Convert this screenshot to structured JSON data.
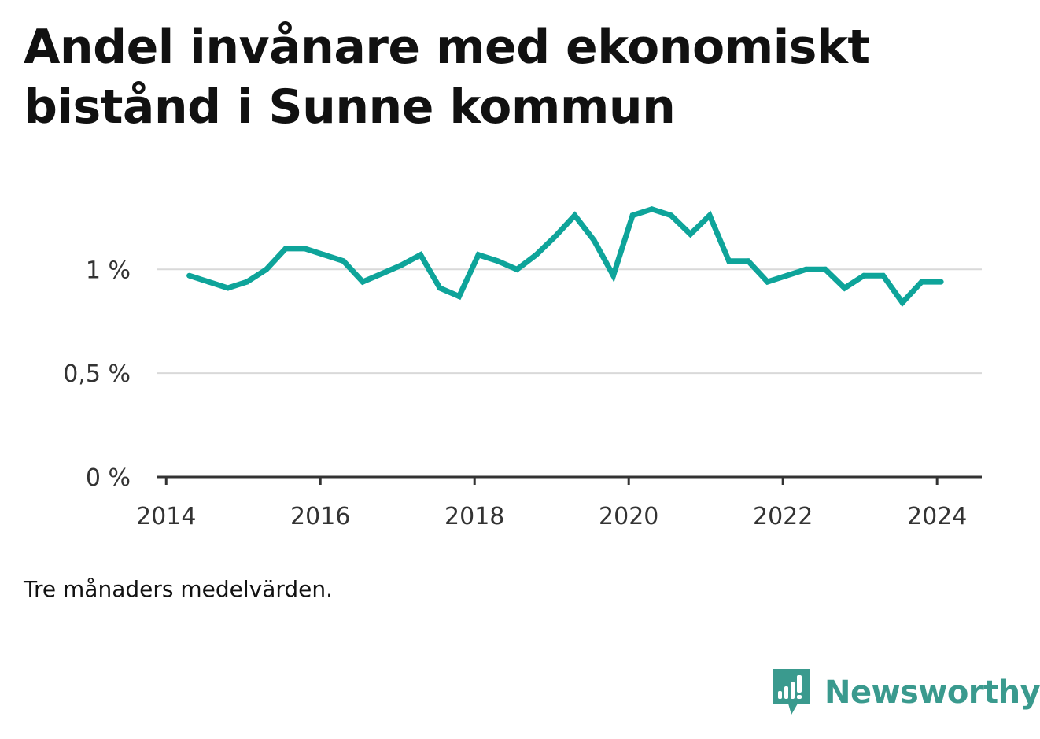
{
  "title": "Andel invånare med ekonomiskt bistånd i Sunne kommun",
  "note": "Tre månaders medelvärden.",
  "brand": {
    "name": "Newsworthy",
    "icon": "newsworthy-logo-icon",
    "color": "#3a9a8e"
  },
  "chart_data": {
    "type": "line",
    "line_color": "#0ea49a",
    "grid": true,
    "x_ticks": [
      {
        "value": 2014,
        "label": "2014"
      },
      {
        "value": 2016,
        "label": "2016"
      },
      {
        "value": 2018,
        "label": "2018"
      },
      {
        "value": 2020,
        "label": "2020"
      },
      {
        "value": 2022,
        "label": "2022"
      },
      {
        "value": 2024,
        "label": "2024"
      }
    ],
    "y_ticks": [
      {
        "value": 0,
        "label": "0 %"
      },
      {
        "value": 0.5,
        "label": "0,5 %"
      },
      {
        "value": 1,
        "label": "1 %"
      }
    ],
    "xlim": [
      2013.875,
      2024.58
    ],
    "ylim": [
      0,
      1.35
    ],
    "series": [
      {
        "x": [
          2014.3,
          2014.55,
          2014.8,
          2015.05,
          2015.3,
          2015.55,
          2015.8,
          2016.05,
          2016.3,
          2016.55,
          2016.8,
          2017.05,
          2017.3,
          2017.55,
          2017.8,
          2018.05,
          2018.3,
          2018.55,
          2018.8,
          2019.05,
          2019.3,
          2019.55,
          2019.8,
          2020.05,
          2020.3,
          2020.55,
          2020.8,
          2021.05,
          2021.3,
          2021.55,
          2021.8,
          2022.05,
          2022.3,
          2022.55,
          2022.8,
          2023.05,
          2023.3,
          2023.55,
          2023.8,
          2024.05
        ],
        "y": [
          0.97,
          0.94,
          0.91,
          0.94,
          1.0,
          1.1,
          1.1,
          1.07,
          1.04,
          0.94,
          0.98,
          1.02,
          1.07,
          0.91,
          0.87,
          1.07,
          1.04,
          1.0,
          1.07,
          1.16,
          1.26,
          1.14,
          0.97,
          1.26,
          1.29,
          1.26,
          1.17,
          1.26,
          1.04,
          1.04,
          0.94,
          0.97,
          1.0,
          1.0,
          0.91,
          0.97,
          0.97,
          0.84,
          0.94,
          0.94
        ]
      }
    ]
  }
}
